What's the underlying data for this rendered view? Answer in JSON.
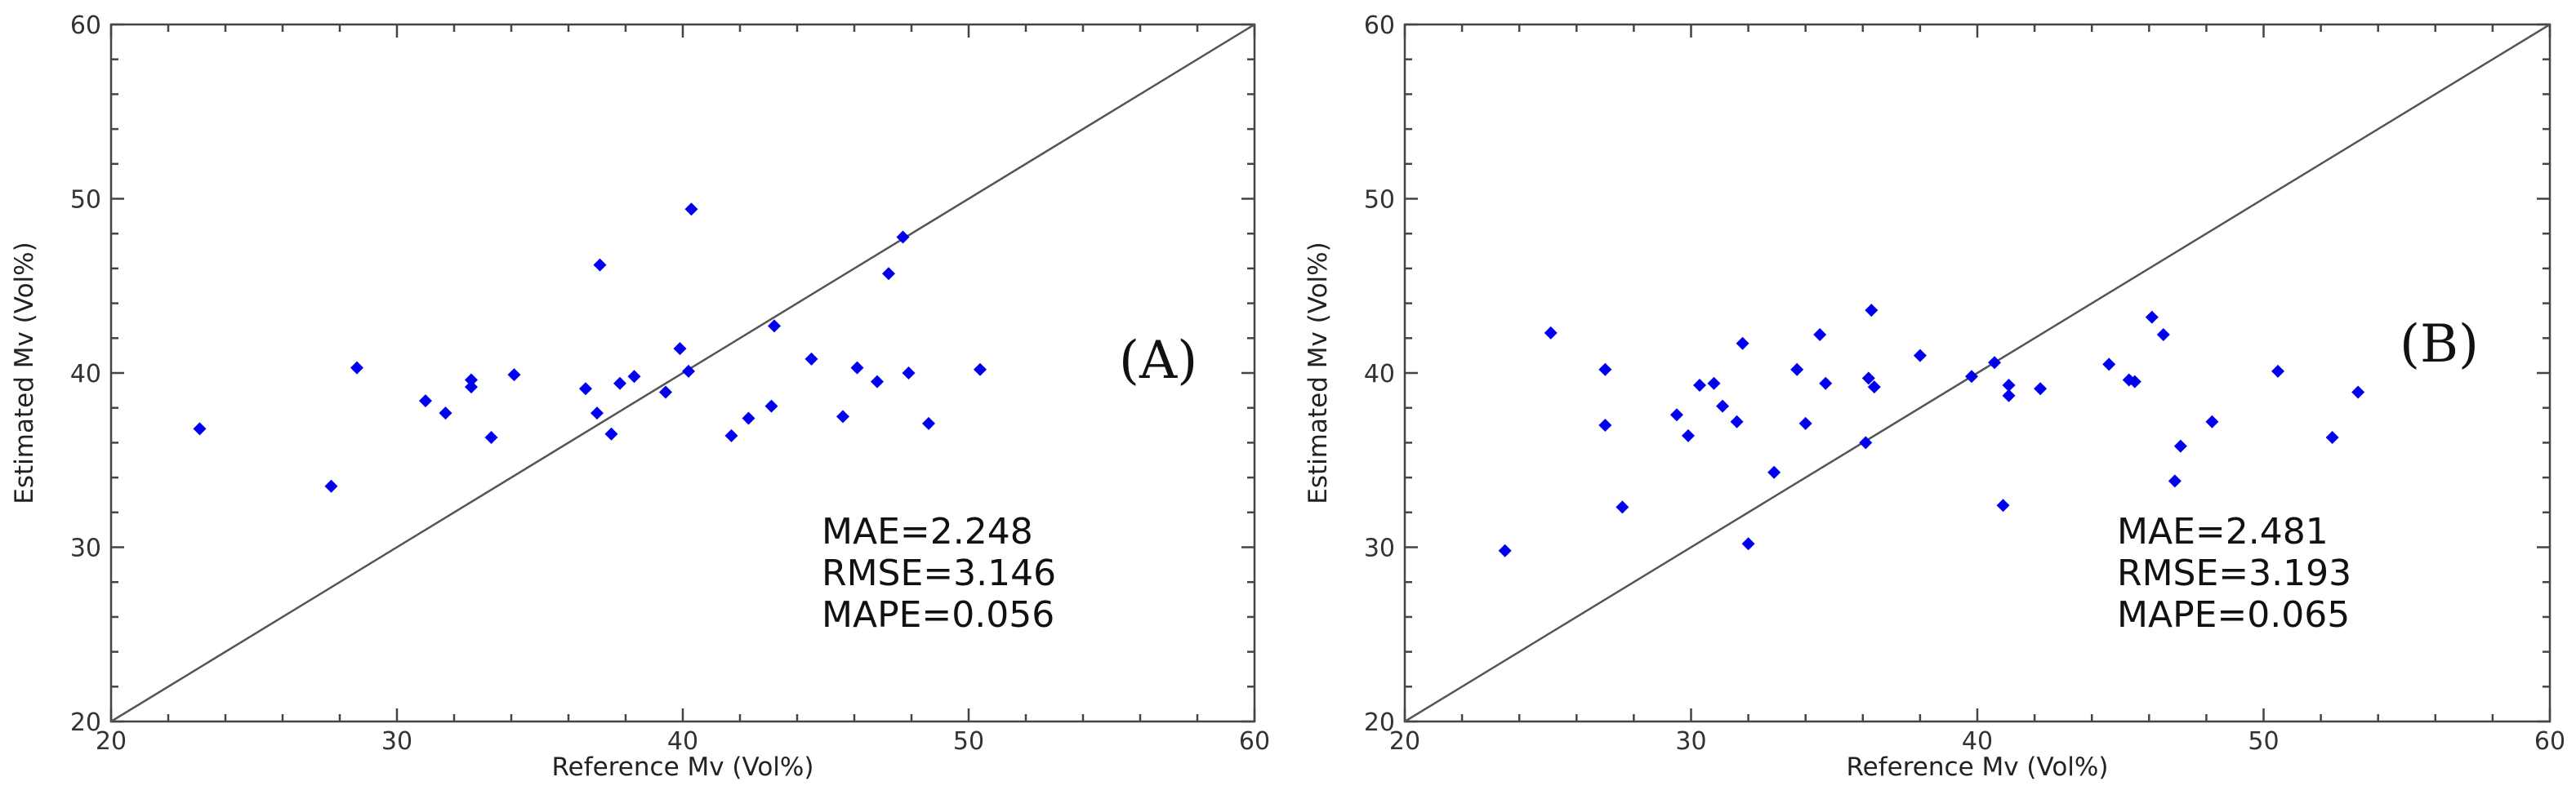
{
  "colors": {
    "point": "#0000ee",
    "axis": "#444444",
    "identity": "#555555"
  },
  "chart_data": [
    {
      "type": "scatter",
      "panel_label": "(A)",
      "xlabel": "Reference Mv (Vol%)",
      "ylabel": "Estimated Mv (Vol%)",
      "xlim": [
        20,
        60
      ],
      "ylim": [
        20,
        60
      ],
      "xticks": [
        20,
        30,
        40,
        50,
        60
      ],
      "yticks": [
        20,
        30,
        40,
        50,
        60
      ],
      "reference_line": "1:1",
      "stats": [
        "MAE=2.248",
        "RMSE=3.146",
        "MAPE=0.056"
      ],
      "points": [
        [
          23.1,
          36.8
        ],
        [
          27.7,
          33.5
        ],
        [
          28.6,
          40.3
        ],
        [
          31.0,
          38.4
        ],
        [
          31.7,
          37.7
        ],
        [
          32.6,
          39.6
        ],
        [
          32.6,
          39.2
        ],
        [
          33.3,
          36.3
        ],
        [
          34.1,
          39.9
        ],
        [
          36.6,
          39.1
        ],
        [
          37.0,
          37.7
        ],
        [
          37.1,
          46.2
        ],
        [
          37.5,
          36.5
        ],
        [
          37.8,
          39.4
        ],
        [
          38.3,
          39.8
        ],
        [
          39.4,
          38.9
        ],
        [
          39.9,
          41.4
        ],
        [
          40.2,
          40.1
        ],
        [
          40.3,
          49.4
        ],
        [
          41.7,
          36.4
        ],
        [
          42.3,
          37.4
        ],
        [
          43.1,
          38.1
        ],
        [
          43.2,
          42.7
        ],
        [
          44.5,
          40.8
        ],
        [
          45.6,
          37.5
        ],
        [
          46.1,
          40.3
        ],
        [
          46.8,
          39.5
        ],
        [
          47.2,
          45.7
        ],
        [
          47.7,
          47.8
        ],
        [
          47.9,
          40.0
        ],
        [
          48.6,
          37.1
        ],
        [
          50.4,
          40.2
        ]
      ]
    },
    {
      "type": "scatter",
      "panel_label": "(B)",
      "xlabel": "Reference Mv (Vol%)",
      "ylabel": "Estimated Mv (Vol%)",
      "xlim": [
        20,
        60
      ],
      "ylim": [
        20,
        60
      ],
      "xticks": [
        20,
        30,
        40,
        50,
        60
      ],
      "yticks": [
        20,
        30,
        40,
        50,
        60
      ],
      "reference_line": "1:1",
      "stats": [
        "MAE=2.481",
        "RMSE=3.193",
        "MAPE=0.065"
      ],
      "points": [
        [
          23.5,
          29.8
        ],
        [
          25.1,
          42.3
        ],
        [
          27.0,
          37.0
        ],
        [
          27.0,
          40.2
        ],
        [
          27.6,
          32.3
        ],
        [
          29.5,
          37.6
        ],
        [
          29.9,
          36.4
        ],
        [
          30.3,
          39.3
        ],
        [
          30.8,
          39.4
        ],
        [
          31.1,
          38.1
        ],
        [
          31.6,
          37.2
        ],
        [
          31.8,
          41.7
        ],
        [
          32.0,
          30.2
        ],
        [
          32.9,
          34.3
        ],
        [
          33.7,
          40.2
        ],
        [
          34.0,
          37.1
        ],
        [
          34.5,
          42.2
        ],
        [
          34.7,
          39.4
        ],
        [
          36.1,
          36.0
        ],
        [
          36.2,
          39.7
        ],
        [
          36.3,
          43.6
        ],
        [
          36.4,
          39.2
        ],
        [
          38.0,
          41.0
        ],
        [
          39.8,
          39.8
        ],
        [
          40.6,
          40.6
        ],
        [
          40.9,
          32.4
        ],
        [
          41.1,
          39.3
        ],
        [
          41.1,
          38.7
        ],
        [
          42.2,
          39.1
        ],
        [
          44.6,
          40.5
        ],
        [
          45.3,
          39.6
        ],
        [
          45.5,
          39.5
        ],
        [
          46.1,
          43.2
        ],
        [
          46.5,
          42.2
        ],
        [
          46.9,
          33.8
        ],
        [
          47.1,
          35.8
        ],
        [
          48.2,
          37.2
        ],
        [
          50.5,
          40.1
        ],
        [
          52.4,
          36.3
        ],
        [
          53.3,
          38.9
        ]
      ]
    }
  ]
}
